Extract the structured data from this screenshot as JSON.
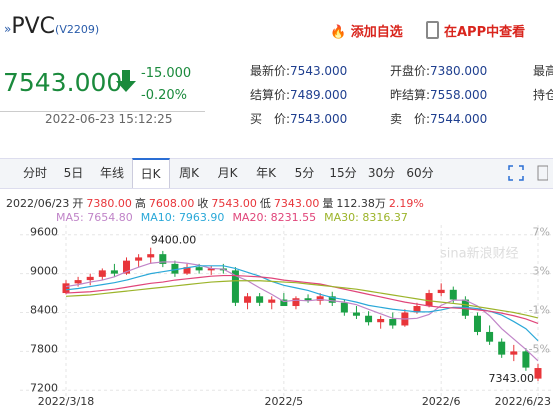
{
  "header": {
    "symbol": "PVC",
    "code": "(V2209)",
    "add": "添加自选",
    "app": "在APP中查看"
  },
  "quote": {
    "price": "7543.000",
    "change": "-15.000",
    "pct": "-0.20%",
    "time": "2022-06-23 15:12:25",
    "fields": [
      [
        "最新价:",
        "7543.000"
      ],
      [
        "开盘价:",
        "7380.000"
      ],
      [
        "最高",
        ""
      ],
      [
        "结算价:",
        "7489.000"
      ],
      [
        "昨结算:",
        "7558.000"
      ],
      [
        "持仓",
        ""
      ],
      [
        "买　价:",
        "7543.000"
      ],
      [
        "卖　价:",
        "7544.000"
      ]
    ]
  },
  "tabs": [
    "分时",
    "5日",
    "年线",
    "日K",
    "周K",
    "月K",
    "年K",
    "5分",
    "15分",
    "30分",
    "60分"
  ],
  "selected_tab": "日K",
  "info": [
    "2022/06/23",
    "开",
    "7380.00",
    "高",
    "7608.00",
    "收",
    "7543.00",
    "低",
    "7343.00",
    "量",
    "112.38万",
    "2.19%"
  ],
  "chart_data": {
    "type": "candlestick",
    "watermark": "sina新浪财经",
    "categories": [
      "2022/3/18",
      null,
      null,
      null,
      null,
      null,
      null,
      null,
      null,
      null,
      null,
      null,
      null,
      null,
      null,
      null,
      null,
      null,
      "2022/5",
      null,
      null,
      null,
      null,
      null,
      null,
      null,
      null,
      null,
      null,
      null,
      null,
      "2022/6",
      null,
      null,
      null,
      null,
      null,
      null,
      null,
      "2022/6/23"
    ],
    "open": [
      8700,
      8850,
      8900,
      8950,
      9050,
      9000,
      9200,
      9250,
      9300,
      9150,
      9000,
      9100,
      9050,
      9080,
      9050,
      8550,
      8650,
      8550,
      8600,
      8500,
      8620,
      8580,
      8650,
      8550,
      8400,
      8350,
      8250,
      8300,
      8200,
      8400,
      8500,
      8700,
      8750,
      8600,
      8350,
      8100,
      7950,
      7750,
      7800,
      7380
    ],
    "high": [
      8900,
      8950,
      9000,
      9080,
      9150,
      9250,
      9300,
      9400,
      9350,
      9200,
      9150,
      9150,
      9120,
      9150,
      9100,
      8700,
      8700,
      8650,
      8700,
      8650,
      8680,
      8700,
      8720,
      8600,
      8500,
      8420,
      8350,
      8400,
      8450,
      8550,
      8750,
      8850,
      8800,
      8650,
      8400,
      8200,
      8000,
      7900,
      7850,
      7608
    ],
    "low": [
      8680,
      8800,
      8820,
      8900,
      8950,
      8980,
      9100,
      9150,
      9100,
      8950,
      8980,
      9000,
      8980,
      9000,
      8500,
      8450,
      8500,
      8450,
      8500,
      8450,
      8550,
      8520,
      8500,
      8350,
      8300,
      8200,
      8150,
      8150,
      8180,
      8380,
      8480,
      8650,
      8550,
      8300,
      8050,
      7900,
      7700,
      7650,
      7500,
      7343
    ],
    "close": [
      8850,
      8900,
      8950,
      9050,
      9000,
      9200,
      9250,
      9300,
      9150,
      9000,
      9100,
      9050,
      9080,
      9050,
      8550,
      8650,
      8550,
      8600,
      8500,
      8620,
      8580,
      8650,
      8550,
      8400,
      8350,
      8250,
      8300,
      8200,
      8400,
      8500,
      8700,
      8750,
      8600,
      8350,
      8100,
      7950,
      7750,
      7800,
      7550,
      7543
    ],
    "up_color": "#e8353a",
    "down_color": "#1ba045",
    "series": [
      {
        "name": "MA5",
        "label": "7654.80",
        "color": "#c084c8",
        "values": [
          8800,
          8830,
          8870,
          8900,
          8950,
          9030,
          9100,
          9160,
          9180,
          9180,
          9160,
          9130,
          9080,
          9070,
          8970,
          8890,
          8780,
          8680,
          8570,
          8590,
          8580,
          8600,
          8580,
          8560,
          8520,
          8450,
          8380,
          8310,
          8300,
          8310,
          8370,
          8510,
          8590,
          8590,
          8500,
          8350,
          8150,
          7990,
          7830,
          7655
        ]
      },
      {
        "name": "MA10",
        "label": "7963.90",
        "color": "#2aa8d8",
        "values": [
          8750,
          8770,
          8800,
          8830,
          8860,
          8900,
          8950,
          9000,
          9030,
          9060,
          9090,
          9120,
          9120,
          9120,
          9080,
          9020,
          8960,
          8880,
          8820,
          8780,
          8740,
          8680,
          8630,
          8600,
          8560,
          8510,
          8480,
          8450,
          8430,
          8410,
          8410,
          8440,
          8480,
          8480,
          8460,
          8420,
          8360,
          8260,
          8150,
          7964
        ]
      },
      {
        "name": "MA20",
        "label": "8231.55",
        "color": "#e0457a",
        "values": [
          8700,
          8710,
          8720,
          8740,
          8760,
          8790,
          8820,
          8850,
          8870,
          8900,
          8920,
          8940,
          8960,
          8970,
          8970,
          8960,
          8950,
          8930,
          8900,
          8880,
          8860,
          8840,
          8800,
          8760,
          8720,
          8680,
          8640,
          8600,
          8560,
          8530,
          8500,
          8480,
          8470,
          8460,
          8440,
          8420,
          8390,
          8350,
          8300,
          8232
        ]
      },
      {
        "name": "MA30",
        "label": "8316.37",
        "color": "#9cb42a",
        "values": [
          8650,
          8660,
          8670,
          8690,
          8710,
          8730,
          8750,
          8770,
          8790,
          8810,
          8830,
          8850,
          8870,
          8880,
          8890,
          8890,
          8890,
          8880,
          8870,
          8860,
          8840,
          8820,
          8800,
          8780,
          8760,
          8730,
          8700,
          8670,
          8640,
          8610,
          8580,
          8560,
          8540,
          8520,
          8490,
          8460,
          8430,
          8400,
          8360,
          8316
        ]
      }
    ],
    "max_label": {
      "value": 9400,
      "label": "9400.00"
    },
    "min_label": {
      "value": 7343,
      "label": "7343.00"
    },
    "ylim": [
      7050,
      9750
    ],
    "yticks": [
      9600,
      9000,
      8400,
      7800,
      7200
    ],
    "y2lim": [
      -10,
      8
    ],
    "y2ticks": [
      {
        "value": 7,
        "label": "7%"
      },
      {
        "value": 3,
        "label": "3%"
      },
      {
        "value": -1,
        "label": "-1%"
      },
      {
        "value": -5,
        "label": "-5%"
      }
    ],
    "grid": true
  }
}
